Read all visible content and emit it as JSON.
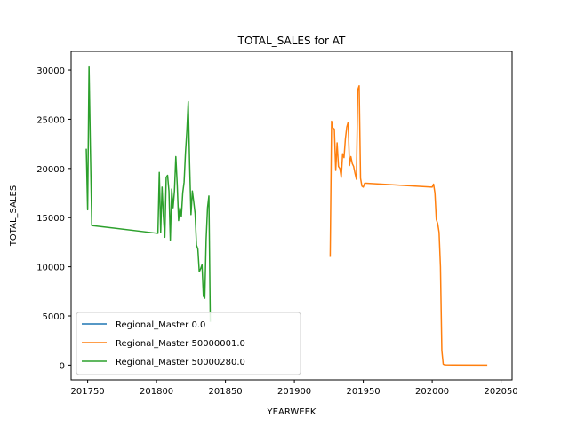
{
  "chart_data": {
    "type": "line",
    "title": "TOTAL_SALES for AT",
    "xlabel": "YEARWEEK",
    "ylabel": "TOTAL_SALES",
    "xlim": [
      201738,
      202058
    ],
    "ylim": [
      -1500,
      31900
    ],
    "xticks": [
      201750,
      201800,
      201850,
      201900,
      201950,
      202000,
      202050
    ],
    "yticks": [
      0,
      5000,
      10000,
      15000,
      20000,
      25000,
      30000
    ],
    "grid": false,
    "legend_position": "lower-left",
    "series": [
      {
        "name": "Regional_Master 0.0",
        "color": "#1f77b4",
        "points": []
      },
      {
        "name": "Regional_Master 50000001.0",
        "color": "#ff7f0e",
        "points": [
          [
            201926,
            11000
          ],
          [
            201927,
            24800
          ],
          [
            201928,
            24100
          ],
          [
            201929,
            24000
          ],
          [
            201930,
            19800
          ],
          [
            201931,
            22600
          ],
          [
            201932,
            20200
          ],
          [
            201933,
            20000
          ],
          [
            201934,
            19100
          ],
          [
            201935,
            21500
          ],
          [
            201936,
            21100
          ],
          [
            201937,
            23000
          ],
          [
            201938,
            24200
          ],
          [
            201939,
            24700
          ],
          [
            201940,
            20300
          ],
          [
            201941,
            21200
          ],
          [
            201942,
            20500
          ],
          [
            201943,
            20200
          ],
          [
            201944,
            19500
          ],
          [
            201945,
            18900
          ],
          [
            201946,
            28000
          ],
          [
            201947,
            28400
          ],
          [
            201948,
            19000
          ],
          [
            201949,
            18200
          ],
          [
            201950,
            18100
          ],
          [
            201951,
            18500
          ],
          [
            201952,
            18500
          ],
          [
            202000,
            18100
          ],
          [
            202001,
            18400
          ],
          [
            202002,
            17500
          ],
          [
            202003,
            14800
          ],
          [
            202004,
            14400
          ],
          [
            202005,
            13500
          ],
          [
            202006,
            10000
          ],
          [
            202007,
            1500
          ],
          [
            202008,
            100
          ],
          [
            202009,
            30
          ],
          [
            202010,
            20
          ],
          [
            202040,
            0
          ]
        ]
      },
      {
        "name": "Regional_Master 50000280.0",
        "color": "#2ca02c",
        "points": [
          [
            201749,
            22000
          ],
          [
            201750,
            15800
          ],
          [
            201751,
            30400
          ],
          [
            201752,
            22000
          ],
          [
            201753,
            14200
          ],
          [
            201801,
            13400
          ],
          [
            201802,
            19600
          ],
          [
            201803,
            13500
          ],
          [
            201804,
            18100
          ],
          [
            201805,
            15100
          ],
          [
            201806,
            13000
          ],
          [
            201807,
            19100
          ],
          [
            201808,
            19300
          ],
          [
            201809,
            17700
          ],
          [
            201810,
            12700
          ],
          [
            201811,
            17900
          ],
          [
            201812,
            16000
          ],
          [
            201813,
            17700
          ],
          [
            201814,
            21200
          ],
          [
            201815,
            18400
          ],
          [
            201816,
            14700
          ],
          [
            201817,
            16000
          ],
          [
            201818,
            15100
          ],
          [
            201819,
            17500
          ],
          [
            201820,
            18600
          ],
          [
            201821,
            21600
          ],
          [
            201822,
            23800
          ],
          [
            201823,
            26800
          ],
          [
            201824,
            20500
          ],
          [
            201825,
            15300
          ],
          [
            201826,
            17700
          ],
          [
            201827,
            16600
          ],
          [
            201828,
            15400
          ],
          [
            201829,
            12200
          ],
          [
            201830,
            11800
          ],
          [
            201831,
            9500
          ],
          [
            201832,
            9800
          ],
          [
            201833,
            10200
          ],
          [
            201834,
            7000
          ],
          [
            201835,
            6800
          ],
          [
            201836,
            12800
          ],
          [
            201837,
            16000
          ],
          [
            201838,
            17200
          ],
          [
            201839,
            4400
          ]
        ]
      }
    ]
  }
}
